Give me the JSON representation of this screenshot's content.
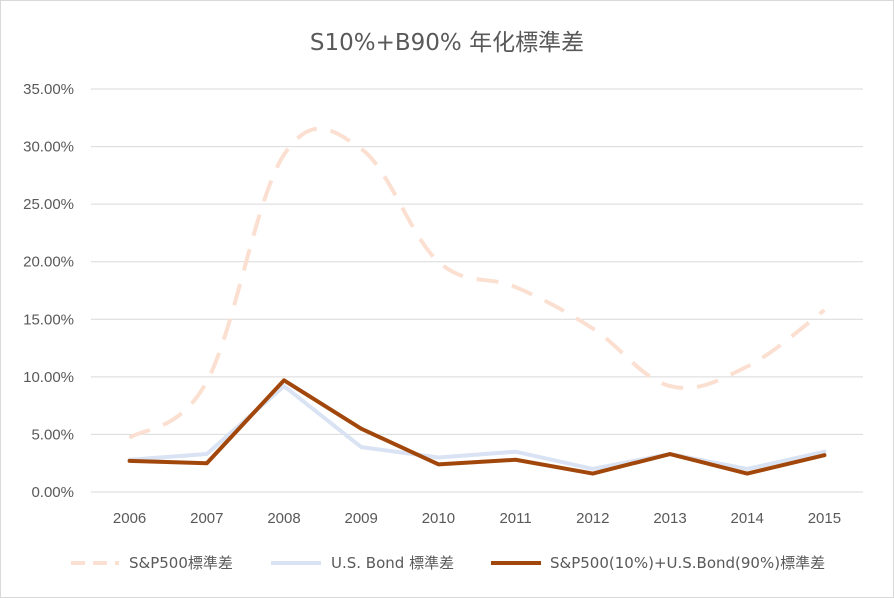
{
  "chart_data": {
    "type": "line",
    "title": "S10%+B90% 年化標準差",
    "xlabel": "",
    "ylabel": "",
    "categories": [
      "2006",
      "2007",
      "2008",
      "2009",
      "2010",
      "2011",
      "2012",
      "2013",
      "2014",
      "2015"
    ],
    "ylim": [
      0,
      0.35
    ],
    "yticks": [
      "0.00%",
      "5.00%",
      "10.00%",
      "15.00%",
      "20.00%",
      "25.00%",
      "30.00%",
      "35.00%"
    ],
    "grid": true,
    "legend_position": "bottom",
    "series": [
      {
        "name": "S&P500標準差",
        "values": [
          0.047,
          0.096,
          0.293,
          0.298,
          0.2,
          0.178,
          0.142,
          0.092,
          0.109,
          0.158
        ],
        "color": "#fbe0d2",
        "style": "dashed"
      },
      {
        "name": "U.S. Bond 標準差",
        "values": [
          0.028,
          0.033,
          0.092,
          0.039,
          0.03,
          0.035,
          0.02,
          0.033,
          0.02,
          0.035
        ],
        "color": "#dae3f3",
        "style": "solid"
      },
      {
        "name": "S&P500(10%)+U.S.Bond(90%)標準差",
        "values": [
          0.027,
          0.025,
          0.097,
          0.055,
          0.024,
          0.028,
          0.016,
          0.033,
          0.016,
          0.032
        ],
        "color": "#a2470b",
        "style": "solid"
      }
    ]
  }
}
